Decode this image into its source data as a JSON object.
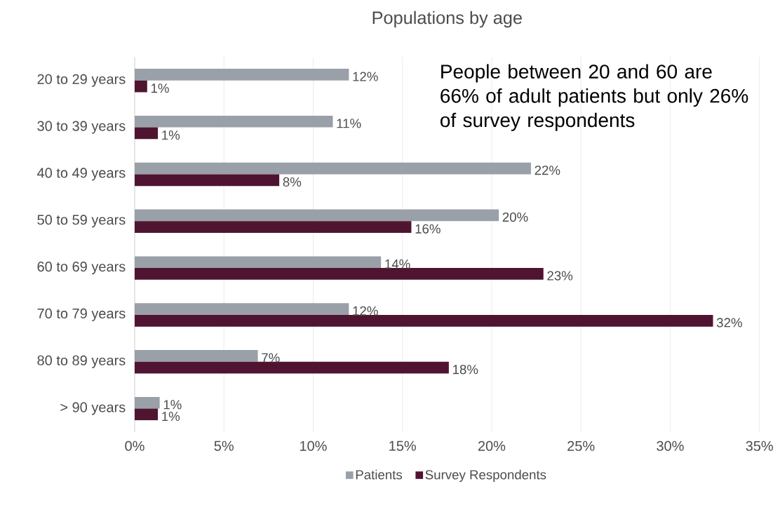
{
  "chart_data": {
    "type": "bar",
    "orientation": "horizontal",
    "title": "Populations by age",
    "categories": [
      "20 to 29 years",
      "30 to 39 years",
      "40 to 49 years",
      "50 to 59 years",
      "60 to 69 years",
      "70 to 79 years",
      "80 to 89 years",
      "> 90 years"
    ],
    "series": [
      {
        "name": "Patients",
        "color": "#9aa0a8",
        "values": [
          12.0,
          11.1,
          22.2,
          20.4,
          13.8,
          12.0,
          6.9,
          1.4
        ],
        "value_labels": [
          "12%",
          "11%",
          "22%",
          "20%",
          "14%",
          "12%",
          "7%",
          "1%"
        ]
      },
      {
        "name": "Survey Respondents",
        "color": "#4f1530",
        "values": [
          0.7,
          1.3,
          8.1,
          15.5,
          22.9,
          32.4,
          17.6,
          1.3
        ],
        "value_labels": [
          "1%",
          "1%",
          "8%",
          "16%",
          "23%",
          "32%",
          "18%",
          "1%"
        ]
      }
    ],
    "xlim": [
      0,
      35
    ],
    "xticks": [
      {
        "value": 0,
        "label": "0%"
      },
      {
        "value": 5,
        "label": "5%"
      },
      {
        "value": 10,
        "label": "10%"
      },
      {
        "value": 15,
        "label": "15%"
      },
      {
        "value": 20,
        "label": "20%"
      },
      {
        "value": 25,
        "label": "25%"
      },
      {
        "value": 30,
        "label": "30%"
      },
      {
        "value": 35,
        "label": "35%"
      }
    ],
    "grid": "x",
    "legend": "bottom",
    "annotations": [
      "People between 20 and 60 are 66% of adult patients but only 26% of survey respondents"
    ]
  }
}
